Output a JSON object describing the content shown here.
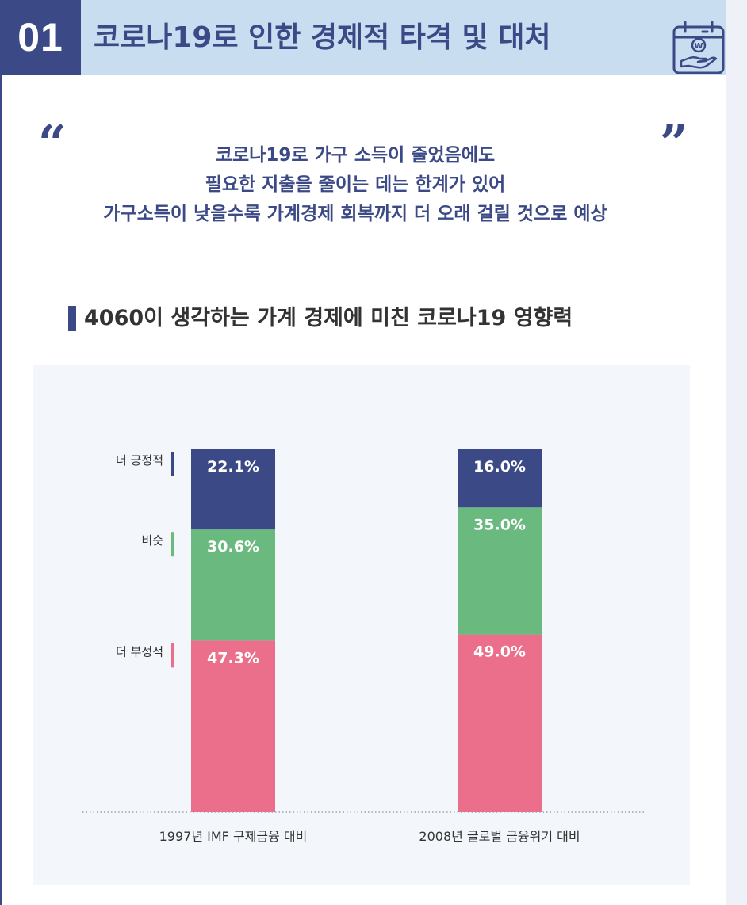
{
  "header": {
    "number": "01",
    "title": "코로나19로 인한 경제적 타격 및 대처",
    "icon": "calendar-hand-won-icon"
  },
  "quote": {
    "lines": [
      "코로나19로 가구 소득이 줄었음에도",
      "필요한 지출을 줄이는 데는 한계가 있어",
      "가구소득이 낮을수록 가계경제 회복까지 더 오래 걸릴 것으로 예상"
    ]
  },
  "section": {
    "title": "4060이 생각하는 가계 경제에 미친 코로나19 영향력"
  },
  "colors": {
    "primary": "#3b4a86",
    "header_bg": "#c9ddf0",
    "positive": "#3b4a86",
    "similar": "#6ab97f",
    "negative": "#eb6e8a",
    "panel_bg": "#f3f7fc"
  },
  "chart_data": {
    "type": "bar",
    "stacked": true,
    "categories": [
      "1997년 IMF 구제금융 대비",
      "2008년 글로벌 금융위기 대비"
    ],
    "series": [
      {
        "name": "더 부정적",
        "values": [
          47.3,
          49.0
        ],
        "labels": [
          "47.3%",
          "49.0%"
        ],
        "color": "#eb6e8a"
      },
      {
        "name": "비슷",
        "values": [
          30.6,
          35.0
        ],
        "labels": [
          "30.6%",
          "35.0%"
        ],
        "color": "#6ab97f"
      },
      {
        "name": "더 긍정적",
        "values": [
          22.1,
          16.0
        ],
        "labels": [
          "22.1%",
          "16.0%"
        ],
        "color": "#3b4a86"
      }
    ],
    "legend_position": "left",
    "ylim": [
      0,
      100
    ],
    "grid": false
  }
}
